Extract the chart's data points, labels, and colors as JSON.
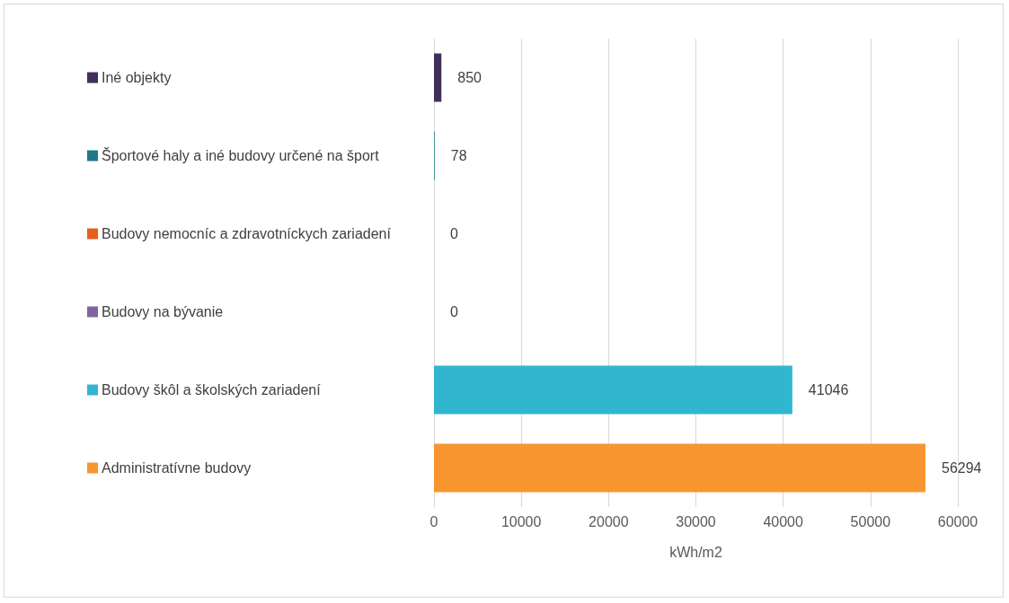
{
  "chart_data": {
    "type": "bar",
    "orientation": "horizontal",
    "categories": [
      "Iné objekty",
      "Športové haly a iné budovy určené na šport",
      "Budovy nemocníc a zdravotníckych zariadení",
      "Budovy na bývanie",
      "Budovy škôl a školských zariadení",
      "Administratívne budovy"
    ],
    "values": [
      850,
      78,
      0,
      0,
      41046,
      56294
    ],
    "colors": [
      "#3f2f5a",
      "#1f7a8c",
      "#e4601b",
      "#8064a2",
      "#31b6d0",
      "#f7962f"
    ],
    "xlabel": "kWh/m2",
    "xlim": [
      0,
      60000
    ],
    "xticks": [
      0,
      10000,
      20000,
      30000,
      40000,
      50000,
      60000
    ],
    "grid": "x",
    "data_labels": true
  }
}
